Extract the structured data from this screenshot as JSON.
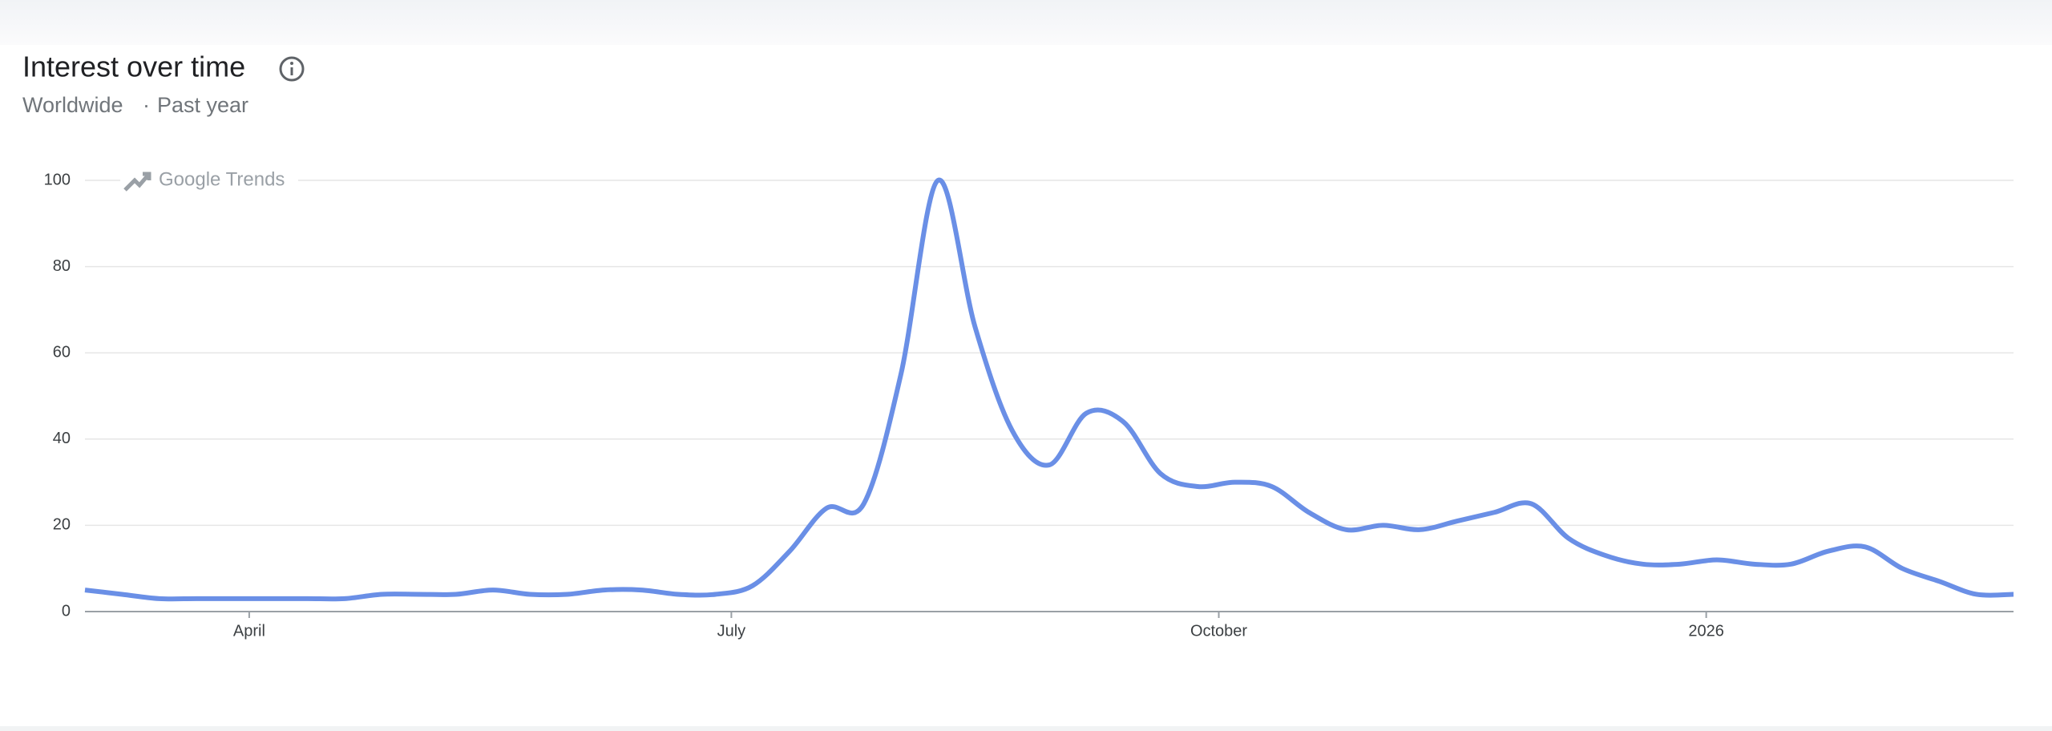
{
  "chart_data": {
    "type": "line",
    "title": "Interest over time",
    "region": "Worldwide",
    "separator": "·",
    "period": "Past year",
    "watermark": "Google Trends",
    "x": [
      0,
      7,
      14,
      21,
      28,
      35,
      42,
      49,
      56,
      63,
      70,
      77,
      84,
      91,
      98,
      105,
      112,
      119,
      126,
      133,
      140,
      147,
      154,
      161,
      168,
      175,
      182,
      189,
      196,
      203,
      210,
      217,
      224,
      231,
      238,
      245,
      252,
      259,
      266,
      273,
      280,
      287,
      294,
      301,
      308,
      315,
      322,
      329,
      336,
      343,
      350,
      357,
      364
    ],
    "series": [
      {
        "color": "#6a8fe6",
        "values": [
          5,
          4,
          3,
          3,
          3,
          3,
          3,
          3,
          4,
          4,
          4,
          5,
          4,
          4,
          5,
          5,
          4,
          4,
          6,
          14,
          24,
          25,
          55,
          100,
          66,
          42,
          34,
          46,
          44,
          32,
          29,
          30,
          29,
          23,
          19,
          20,
          19,
          21,
          23,
          25,
          17,
          13,
          11,
          11,
          12,
          11,
          11,
          14,
          15,
          10,
          7,
          4,
          4
        ]
      }
    ],
    "xlim": [
      0,
      364
    ],
    "xticks": [
      {
        "value": 31,
        "label": "April"
      },
      {
        "value": 122,
        "label": "July"
      },
      {
        "value": 214,
        "label": "October"
      },
      {
        "value": 306,
        "label": "2026"
      }
    ],
    "ylim": [
      0,
      100
    ],
    "yticks": [
      0,
      20,
      40,
      60,
      80,
      100
    ],
    "grid": true
  }
}
